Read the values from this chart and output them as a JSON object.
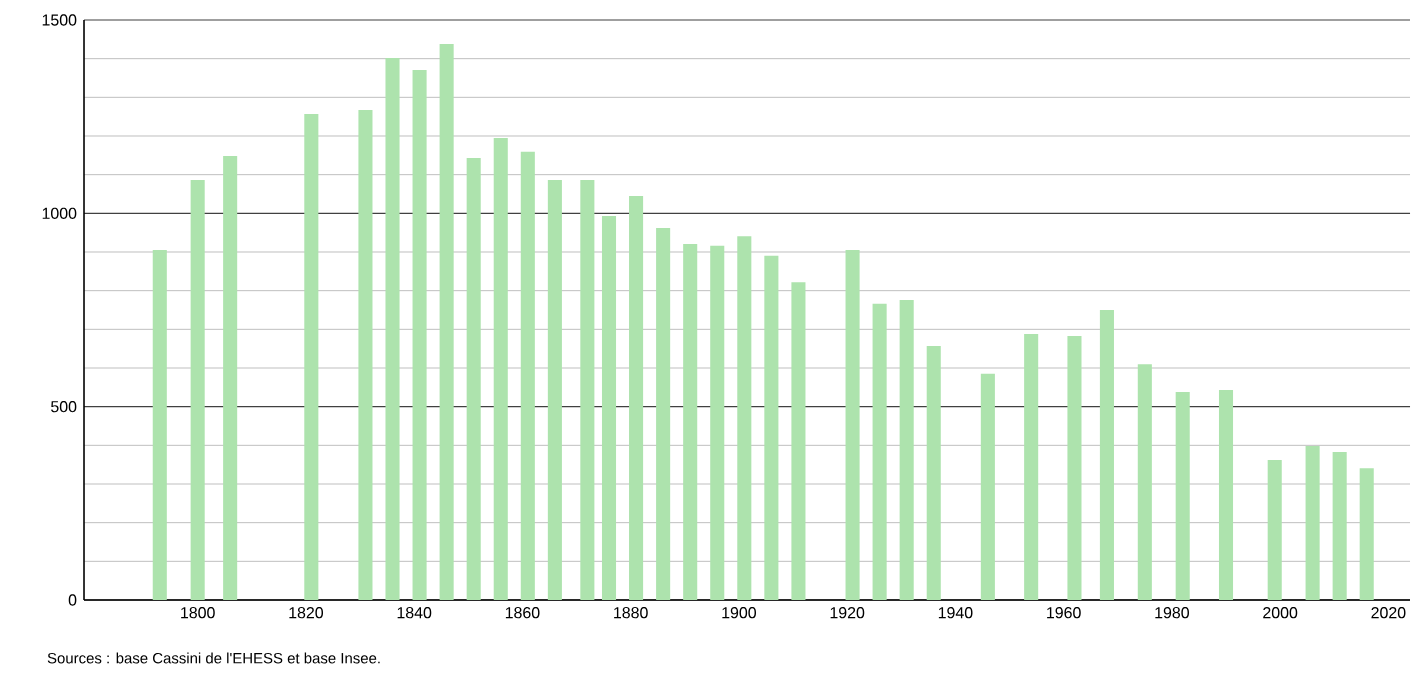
{
  "chart_data": {
    "type": "bar",
    "color": "#ade3ad",
    "x": [
      1793,
      1800,
      1806,
      1821,
      1831,
      1836,
      1841,
      1846,
      1851,
      1856,
      1861,
      1866,
      1872,
      1876,
      1881,
      1886,
      1891,
      1896,
      1901,
      1906,
      1911,
      1921,
      1926,
      1931,
      1936,
      1946,
      1954,
      1962,
      1968,
      1975,
      1982,
      1990,
      1999,
      2006,
      2011,
      2016
    ],
    "values": [
      905,
      1086,
      1148,
      1257,
      1267,
      1402,
      1371,
      1438,
      1143,
      1195,
      1159,
      1086,
      1086,
      993,
      1045,
      962,
      921,
      916,
      941,
      890,
      822,
      905,
      766,
      776,
      657,
      585,
      688,
      683,
      750,
      610,
      538,
      543,
      362,
      398,
      383,
      341
    ],
    "xlim": [
      1779,
      2024
    ],
    "xticks": [
      1800,
      1820,
      1840,
      1860,
      1880,
      1900,
      1920,
      1940,
      1960,
      1980,
      2000,
      2020
    ],
    "ylim": [
      0,
      1500
    ],
    "yticks": [
      0,
      500,
      1000,
      1500
    ],
    "grid": "y",
    "annotations": [
      "Sources : base Cassini de l'EHESS et base Insee."
    ]
  }
}
